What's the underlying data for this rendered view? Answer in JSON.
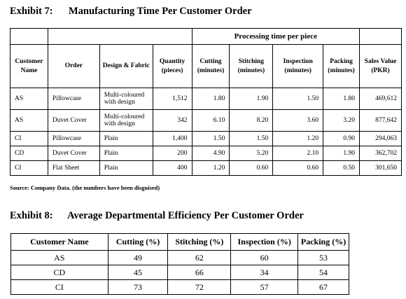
{
  "exhibit7": {
    "number": "Exhibit 7:",
    "title": "Manufacturing Time Per Customer Order",
    "group_header": "Processing time per piece",
    "headers": {
      "customer": "Customer Name",
      "order": "Order",
      "design": "Design & Fabric",
      "quantity": "Quantity (pieces)",
      "cutting": "Cutting (minutes)",
      "stitching": "Stitching (minutes)",
      "inspection": "Inspection (minutes)",
      "packing": "Packing (minutes)",
      "sales": "Sales Value (PKR)"
    },
    "rows": [
      {
        "customer": "AS",
        "order": "Pillowcase",
        "design": "Multi-coloured with design",
        "quantity": "1,512",
        "cutting": "1.80",
        "stitching": "1.90",
        "inspection": "1.50",
        "packing": "1.80",
        "sales": "469,612"
      },
      {
        "customer": "AS",
        "order": "Duvet Cover",
        "design": "Multi-coloured with design",
        "quantity": "342",
        "cutting": "6.10",
        "stitching": "8.20",
        "inspection": "3.60",
        "packing": "3.20",
        "sales": "877,642"
      },
      {
        "customer": "CI",
        "order": "Pillowcase",
        "design": "Plain",
        "quantity": "1,400",
        "cutting": "1.50",
        "stitching": "1.50",
        "inspection": "1.20",
        "packing": "0.90",
        "sales": "294,063"
      },
      {
        "customer": "CD",
        "order": "Duvet Cover",
        "design": "Plain",
        "quantity": "200",
        "cutting": "4.90",
        "stitching": "5.20",
        "inspection": "2.10",
        "packing": "1.90",
        "sales": "362,702"
      },
      {
        "customer": "CI",
        "order": "Flat Sheet",
        "design": "Plain",
        "quantity": "400",
        "cutting": "1.20",
        "stitching": "0.60",
        "inspection": "0.60",
        "packing": "0.50",
        "sales": "301,650"
      }
    ],
    "source": "Source: Company Data. (the numbers have been disguised)"
  },
  "exhibit8": {
    "number": "Exhibit 8:",
    "title": "Average Departmental Efficiency Per Customer Order",
    "headers": [
      "Customer Name",
      "Cutting (%)",
      "Stitching (%)",
      "Inspection (%)",
      "Packing (%)"
    ],
    "rows": [
      [
        "AS",
        "49",
        "62",
        "60",
        "53"
      ],
      [
        "CD",
        "45",
        "66",
        "34",
        "54"
      ],
      [
        "CI",
        "73",
        "72",
        "57",
        "67"
      ]
    ]
  }
}
